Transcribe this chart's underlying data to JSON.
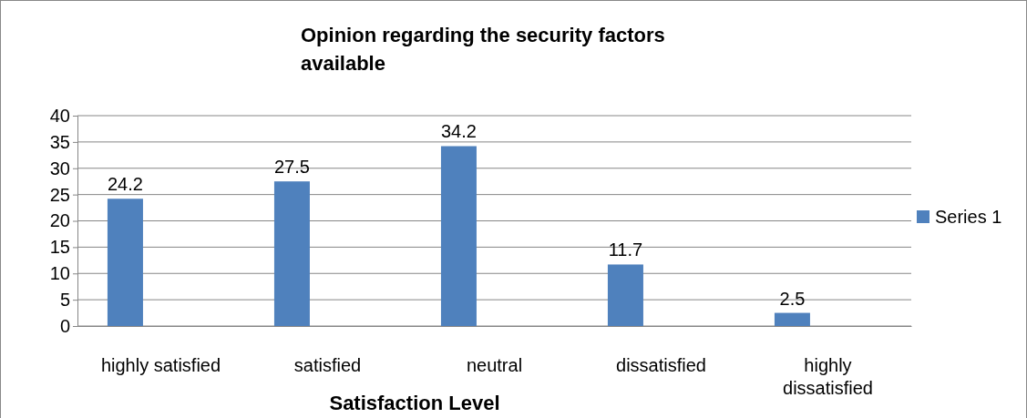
{
  "chart_data": {
    "type": "bar",
    "title": "Opinion regarding the security factors available",
    "xlabel": "Satisfaction Level",
    "categories": [
      "highly satisfied",
      "satisfied",
      "neutral",
      "dissatisfied",
      "highly dissatisfied"
    ],
    "series": [
      {
        "name": "Series 1",
        "color": "#4f81bd",
        "values": [
          24.2,
          27.5,
          34.2,
          11.7,
          2.5
        ]
      }
    ],
    "ylim": [
      0,
      40
    ],
    "yticks": [
      0,
      5,
      10,
      15,
      20,
      25,
      30,
      35,
      40
    ],
    "grid": "y",
    "legend": "right",
    "data_labels": true
  }
}
